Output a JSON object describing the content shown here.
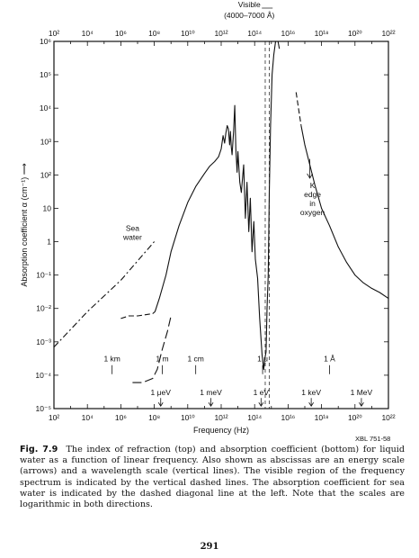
{
  "chart_data": {
    "type": "line",
    "title": "",
    "xlabel": "Frequency (Hz)",
    "ylabel": "Absorption coefficient α (cm⁻¹) ⟶",
    "xscale": "log",
    "yscale": "log",
    "xlim": [
      100,
      1e+22
    ],
    "ylim": [
      1e-05,
      1000000.0
    ],
    "x_tick_labels": [
      "10²",
      "10⁴",
      "10⁶",
      "10⁸",
      "10¹⁰",
      "10¹²",
      "10¹⁴",
      "10¹⁶",
      "10¹⁸",
      "10²⁰",
      "10²²"
    ],
    "y_tick_labels": [
      "10⁻⁵",
      "10⁻⁴",
      "10⁻³",
      "10⁻²",
      "10⁻¹",
      "1",
      "10",
      "10²",
      "10³",
      "10⁴",
      "10⁵",
      "10⁶"
    ],
    "visible_band": {
      "label": "Visible",
      "sublabel": "(4000–7000 Å)",
      "x_range": [
        430000000000000.0,
        750000000000000.0
      ]
    },
    "series": [
      {
        "style": "solid",
        "points": [
          [
            110000000.0,
            0.008
          ],
          [
            200000000.0,
            0.02
          ],
          [
            500000000.0,
            0.1
          ],
          [
            1000000000.0,
            0.5
          ],
          [
            3000000000.0,
            3
          ],
          [
            10000000000.0,
            15
          ],
          [
            30000000000.0,
            45
          ],
          [
            100000000000.0,
            110
          ],
          [
            200000000000.0,
            180
          ],
          [
            400000000000.0,
            250
          ],
          [
            700000000000.0,
            350
          ],
          [
            1000000000000.0,
            600
          ],
          [
            1300000000000.0,
            1500
          ],
          [
            1600000000000.0,
            900
          ],
          [
            1900000000000.0,
            1800
          ],
          [
            2300000000000.0,
            3000
          ],
          [
            2700000000000.0,
            2400
          ],
          [
            3200000000000.0,
            800
          ],
          [
            3600000000000.0,
            2000
          ],
          [
            4000000000000.0,
            700
          ],
          [
            4500000000000.0,
            400
          ],
          [
            5500000000000.0,
            2000
          ],
          [
            6500000000000.0,
            12000
          ],
          [
            7500000000000.0,
            600
          ],
          [
            9000000000000.0,
            120
          ],
          [
            10000000000000.0,
            500
          ],
          [
            13000000000000.0,
            60
          ],
          [
            16000000000000.0,
            30
          ],
          [
            22000000000000.0,
            200
          ],
          [
            28000000000000.0,
            5
          ],
          [
            35000000000000.0,
            60
          ],
          [
            45000000000000.0,
            2
          ],
          [
            55000000000000.0,
            20
          ],
          [
            70000000000000.0,
            0.5
          ],
          [
            90000000000000.0,
            4
          ],
          [
            110000000000000.0,
            0.3
          ],
          [
            150000000000000.0,
            0.08
          ],
          [
            200000000000000.0,
            0.005
          ],
          [
            280000000000000.0,
            0.0004
          ],
          [
            350000000000000.0,
            0.00015
          ],
          [
            400000000000000.0,
            0.0003
          ],
          [
            480000000000000.0,
            0.0005
          ],
          [
            550000000000000.0,
            0.01
          ],
          [
            650000000000000.0,
            0.1
          ],
          [
            750000000000000.0,
            30
          ],
          [
            900000000000000.0,
            3000
          ],
          [
            1100000000000000.0,
            100000.0
          ],
          [
            1400000000000000.0,
            400000.0
          ],
          [
            1800000000000000.0,
            1000000.0
          ],
          [
            2500000000000000.0,
            1000000.0
          ],
          [
            3000000000000000.0,
            600000.0
          ]
        ]
      },
      {
        "style": "dashed",
        "points": [
          [
            1000000.0,
            0.005
          ],
          [
            3000000.0,
            0.006
          ],
          [
            10000000.0,
            0.006
          ],
          [
            30000000.0,
            0.0065
          ],
          [
            80000000.0,
            0.007
          ],
          [
            110000000.0,
            0.008
          ]
        ]
      },
      {
        "style": "long-dashed",
        "points": [
          [
            5000000.0,
            6e-05
          ],
          [
            20000000.0,
            6e-05
          ],
          [
            80000000.0,
            8e-05
          ],
          [
            150000000.0,
            0.00015
          ],
          [
            300000000.0,
            0.0006
          ],
          [
            600000000.0,
            0.002
          ],
          [
            1000000000.0,
            0.006
          ]
        ]
      },
      {
        "name": "Sea water",
        "style": "dash-dot",
        "points": [
          [
            100,
            0.0007
          ],
          [
            10000.0,
            0.008
          ],
          [
            1000000.0,
            0.07
          ],
          [
            100000000.0,
            1.0
          ]
        ]
      },
      {
        "style": "dashed",
        "points": [
          [
            3e+16,
            30000
          ],
          [
            4.5e+16,
            8000
          ],
          [
            6e+16,
            3000
          ]
        ]
      },
      {
        "style": "solid",
        "points": [
          [
            6e+16,
            3000
          ],
          [
            1e+17,
            800
          ],
          [
            2e+17,
            200
          ],
          [
            4e+17,
            50
          ],
          [
            1e+18,
            10
          ],
          [
            3e+18,
            3
          ],
          [
            1e+19,
            0.7
          ],
          [
            3e+19,
            0.25
          ],
          [
            1e+20,
            0.1
          ],
          [
            3e+20,
            0.06
          ],
          [
            1e+21,
            0.04
          ],
          [
            3e+21,
            0.03
          ],
          [
            1e+22,
            0.02
          ]
        ]
      }
    ],
    "annotations": {
      "sea_water": [
        "Sea",
        "water"
      ],
      "k_edge": [
        "K",
        "edge",
        "in",
        "oxygen"
      ]
    },
    "wavelength_scale": [
      {
        "label": "1 km",
        "freq": 300000.0
      },
      {
        "label": "1 m",
        "freq": 300000000.0
      },
      {
        "label": "1 cm",
        "freq": 30000000000.0
      },
      {
        "label": "1 μ",
        "freq": 300000000000000.0
      },
      {
        "label": "1 Å",
        "freq": 3e+18
      }
    ],
    "energy_scale": [
      {
        "label": "1 μeV",
        "freq": 242000000.0
      },
      {
        "label": "1 meV",
        "freq": 242000000000.0
      },
      {
        "label": "1 eV",
        "freq": 242000000000000.0
      },
      {
        "label": "1 keV",
        "freq": 2.42e+17
      },
      {
        "label": "1 MeV",
        "freq": 2.42e+20
      }
    ]
  },
  "figure_id": "XBL 751-58",
  "caption": {
    "label": "Fig. 7.9",
    "text": "The index of refraction (top) and absorption coefficient (bottom) for liquid water as a function of linear frequency. Also shown as abscissas are an energy scale (arrows) and a wavelength scale (vertical lines). The visible region of the frequency spectrum is indicated by the vertical dashed lines. The absorption coefficient for sea water is indicated by the dashed diagonal line at the left. Note that the scales are logarithmic in both directions."
  },
  "page_number": "291"
}
